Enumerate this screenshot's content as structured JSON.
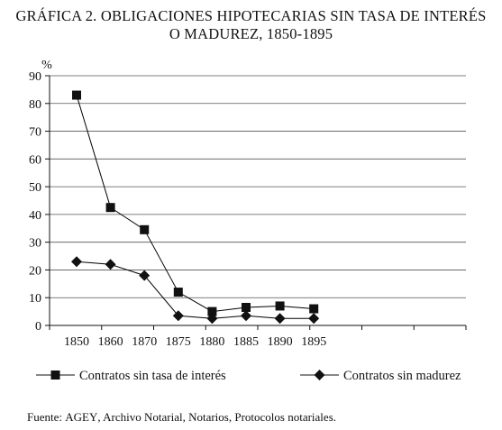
{
  "title": {
    "line1": "GRÁFICA 2. OBLIGACIONES HIPOTECARIAS SIN TASA DE INTERÉS",
    "line2": "O MADUREZ, 1850-1895"
  },
  "source": {
    "prefix": "Fuente: ",
    "abbr": "AGEY",
    "rest": ", Archivo Notarial, Notarios, Protocolos notariales."
  },
  "chart_data": {
    "type": "line",
    "ylabel": "%",
    "ylim": [
      0,
      90
    ],
    "yticks": [
      0,
      10,
      20,
      30,
      40,
      50,
      60,
      70,
      80,
      90
    ],
    "grid": true,
    "legend_position": "bottom",
    "categories": [
      "1850",
      "1860",
      "1870",
      "1875",
      "1880",
      "1885",
      "1890",
      "1895"
    ],
    "series": [
      {
        "name": "Contratos sin tasa de interés",
        "marker": "square",
        "color": "#000000",
        "values": [
          83,
          42.5,
          34.5,
          12,
          5,
          6.5,
          7,
          6
        ]
      },
      {
        "name": "Contratos sin madurez",
        "marker": "diamond",
        "color": "#000000",
        "values": [
          23,
          22,
          18,
          3.5,
          2.5,
          3.5,
          2.5,
          2.5
        ]
      }
    ]
  }
}
